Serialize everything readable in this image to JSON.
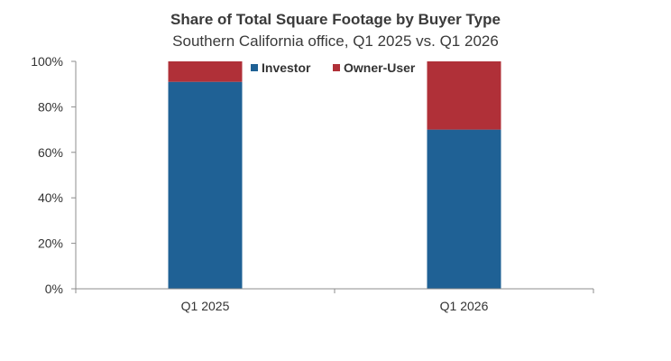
{
  "chart_data": {
    "type": "bar",
    "stacked": true,
    "title": "Share of Total Square Footage by Buyer Type",
    "subtitle": "Southern California office, Q1 2025 vs. Q1 2026",
    "categories": [
      "Q1 2025",
      "Q1 2026"
    ],
    "series": [
      {
        "name": "Investor",
        "values": [
          91,
          70
        ],
        "color": "#1f6195"
      },
      {
        "name": "Owner-User",
        "values": [
          9,
          30
        ],
        "color": "#b03038"
      }
    ],
    "ylim": [
      0,
      100
    ],
    "yticks": [
      "0%",
      "20%",
      "40%",
      "60%",
      "80%",
      "100%"
    ],
    "ytick_values": [
      0,
      20,
      40,
      60,
      80,
      100
    ],
    "grid": false,
    "legend_position": "top-center"
  }
}
